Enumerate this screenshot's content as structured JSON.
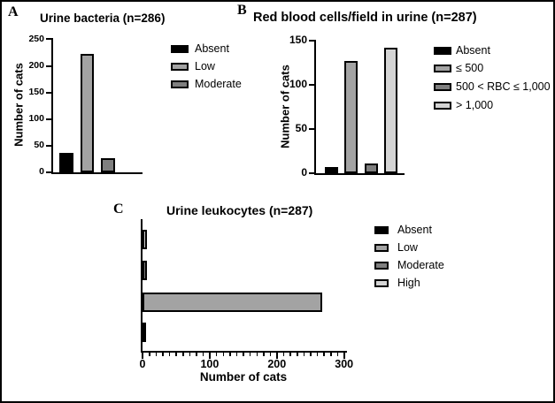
{
  "figure": {
    "type": "scientific-figure",
    "background_color": "#ffffff",
    "border_color": "#000000",
    "panels": [
      "A",
      "B",
      "C"
    ]
  },
  "colors": {
    "black": "#000000",
    "gray": "#a3a3a3",
    "dark_gray": "#7f7f7f",
    "light_gray": "#d4d4d4"
  },
  "chart_data": [
    {
      "id": "A",
      "panel_label": "A",
      "type": "bar",
      "orientation": "vertical",
      "title": "Urine bacteria (n=286)",
      "xlabel": "",
      "ylabel": "Number of cats",
      "categories": [
        "Absent",
        "Low",
        "Moderate"
      ],
      "values": [
        37,
        223,
        26
      ],
      "bar_colors": [
        "#000000",
        "#a3a3a3",
        "#7f7f7f"
      ],
      "ylim": [
        0,
        250
      ],
      "yticks": [
        0,
        50,
        100,
        150,
        200,
        250
      ],
      "grid": false,
      "legend_position": "right",
      "legend": [
        "Absent",
        "Low",
        "Moderate"
      ]
    },
    {
      "id": "B",
      "panel_label": "B",
      "type": "bar",
      "orientation": "vertical",
      "title": "Red blood cells/field in urine (n=287)",
      "xlabel": "",
      "ylabel": "Number of cats",
      "categories": [
        "Absent",
        "≤ 500",
        "500 < RBC ≤ 1,000",
        "> 1,000"
      ],
      "values": [
        7,
        127,
        11,
        142
      ],
      "bar_colors": [
        "#000000",
        "#a3a3a3",
        "#7f7f7f",
        "#d4d4d4"
      ],
      "ylim": [
        0,
        150
      ],
      "yticks": [
        0,
        50,
        100,
        150
      ],
      "grid": false,
      "legend_position": "right",
      "legend": [
        "Absent",
        "≤ 500",
        "500 < RBC ≤ 1,000",
        "> 1,000"
      ]
    },
    {
      "id": "C",
      "panel_label": "C",
      "type": "bar",
      "orientation": "horizontal",
      "title": "Urine leukocytes (n=287)",
      "xlabel": "Number of cats",
      "ylabel": "",
      "categories": [
        "Absent",
        "Low",
        "Moderate",
        "High"
      ],
      "values": [
        5,
        268,
        7,
        7
      ],
      "bar_colors": [
        "#000000",
        "#a3a3a3",
        "#7f7f7f",
        "#d4d4d4"
      ],
      "xlim": [
        0,
        300
      ],
      "xticks": [
        0,
        100,
        200,
        300
      ],
      "minor_tick_step": 10,
      "category_order_on_axis": "bottom-to-top",
      "grid": false,
      "legend_position": "right",
      "legend": [
        "Absent",
        "Low",
        "Moderate",
        "High"
      ]
    }
  ]
}
